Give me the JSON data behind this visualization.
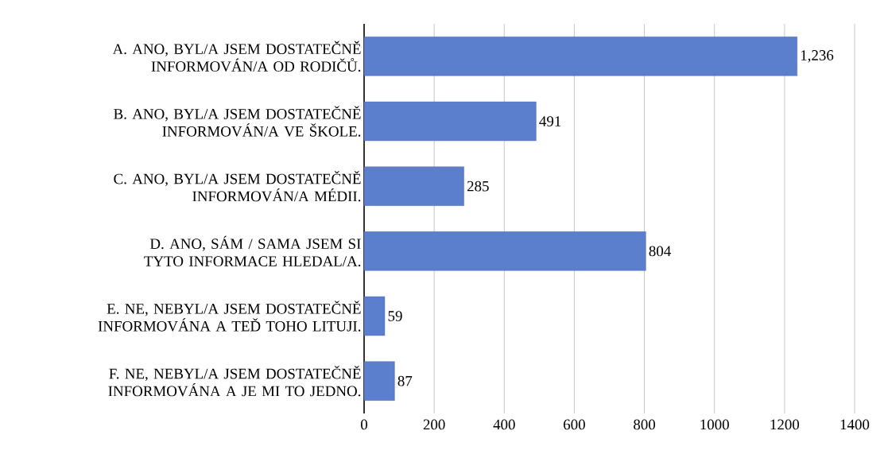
{
  "chart_data": {
    "type": "bar",
    "orientation": "horizontal",
    "categories": [
      "A. ANO, BYL/A JSEM DOSTATEČNĚ INFORMOVÁN/A OD RODIČŮ.",
      "B. ANO, BYL/A JSEM DOSTATEČNĚ INFORMOVÁN/A VE ŠKOLE.",
      "C. ANO, BYL/A JSEM DOSTATEČNĚ INFORMOVÁN/A MÉDII.",
      "D. ANO, SÁM / SAMA JSEM SI TYTO INFORMACE HLEDAL/A.",
      "E. NE, NEBYL/A JSEM DOSTATEČNĚ INFORMOVÁNA A TEĎ TOHO LITUJI.",
      "F. NE, NEBYL/A JSEM DOSTATEČNĚ INFORMOVÁNA A JE MI TO JEDNO."
    ],
    "values": [
      1236,
      491,
      285,
      804,
      59,
      87
    ],
    "value_labels": [
      "1,236",
      "491",
      "285",
      "804",
      "59",
      "87"
    ],
    "color": "#5b7fcc",
    "xlim": [
      0,
      1400
    ],
    "xticks": [
      0,
      200,
      400,
      600,
      800,
      1000,
      1200,
      1400
    ],
    "grid": "x"
  }
}
